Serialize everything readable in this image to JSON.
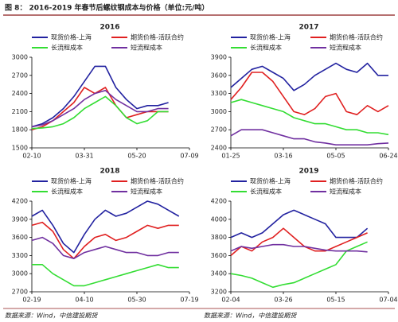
{
  "figure_title": "图 8：  2016-2019 年春节后螺纹钢成本与价格（单位:元/吨）",
  "sources": [
    "数据来源：Wind，中信建投期货",
    "数据来源：Wind，中信建投期货"
  ],
  "chart_data": [
    {
      "type": "line",
      "title": "2016",
      "categories": [
        "02-10",
        null,
        null,
        null,
        null,
        "03-31",
        null,
        null,
        null,
        null,
        "05-20",
        null,
        null,
        null,
        null,
        "07-09"
      ],
      "ylim": [
        1500,
        3000
      ],
      "yticks": [
        1500,
        1800,
        2100,
        2400,
        2700,
        3000
      ],
      "series": [
        {
          "name": "现货价格-上海",
          "color": "#2222a0",
          "values": [
            1850,
            1900,
            2000,
            2150,
            2350,
            2600,
            2850,
            2850,
            2500,
            2300,
            2150,
            2200,
            2200,
            2250,
            null,
            null
          ]
        },
        {
          "name": "期货价格-活跃合约",
          "color": "#e02020",
          "values": [
            1800,
            1850,
            1950,
            2100,
            2250,
            2500,
            2400,
            2500,
            2200,
            2000,
            2050,
            2100,
            2100,
            2100,
            null,
            null
          ]
        },
        {
          "name": "长流程成本",
          "color": "#33dd33",
          "values": [
            1820,
            1830,
            1850,
            1900,
            2000,
            2150,
            2250,
            2350,
            2200,
            2000,
            1900,
            1950,
            2100,
            2100,
            null,
            null
          ]
        },
        {
          "name": "短流程成本",
          "color": "#7030a0",
          "values": [
            1850,
            1880,
            1950,
            2050,
            2150,
            2300,
            2400,
            2450,
            2300,
            2200,
            2100,
            2100,
            2150,
            2150,
            null,
            null
          ]
        }
      ]
    },
    {
      "type": "line",
      "title": "2017",
      "categories": [
        "01-25",
        null,
        null,
        null,
        null,
        "03-16",
        null,
        null,
        null,
        null,
        "05-05",
        null,
        null,
        null,
        null,
        "06-24"
      ],
      "ylim": [
        2400,
        3900
      ],
      "yticks": [
        2400,
        2700,
        3000,
        3300,
        3600,
        3900
      ],
      "series": [
        {
          "name": "现货价格-上海",
          "color": "#2222a0",
          "values": [
            3400,
            3550,
            3700,
            3750,
            3650,
            3550,
            3350,
            3450,
            3600,
            3700,
            3800,
            3700,
            3650,
            3800,
            3600,
            3600
          ]
        },
        {
          "name": "期货价格-活跃合约",
          "color": "#e02020",
          "values": [
            3200,
            3400,
            3650,
            3650,
            3500,
            3250,
            3000,
            2950,
            3050,
            3250,
            3300,
            3000,
            2950,
            3100,
            3000,
            3100
          ]
        },
        {
          "name": "长流程成本",
          "color": "#33dd33",
          "values": [
            3150,
            3200,
            3150,
            3100,
            3050,
            3000,
            2900,
            2850,
            2800,
            2800,
            2750,
            2700,
            2700,
            2650,
            2650,
            2620
          ]
        },
        {
          "name": "短流程成本",
          "color": "#7030a0",
          "values": [
            2600,
            2700,
            2700,
            2700,
            2650,
            2600,
            2550,
            2550,
            2500,
            2480,
            2450,
            2450,
            2450,
            2450,
            2470,
            2480
          ]
        }
      ]
    },
    {
      "type": "line",
      "title": "2018",
      "categories": [
        "02-19",
        null,
        null,
        null,
        null,
        "04-10",
        null,
        null,
        null,
        null,
        "05-30",
        null,
        null,
        null,
        null,
        "07-19"
      ],
      "ylim": [
        2700,
        4200
      ],
      "yticks": [
        2700,
        3000,
        3300,
        3600,
        3900,
        4200
      ],
      "series": [
        {
          "name": "现货价格-上海",
          "color": "#2222a0",
          "values": [
            3950,
            4050,
            3800,
            3500,
            3350,
            3650,
            3900,
            4050,
            3950,
            4000,
            4100,
            4200,
            4150,
            4050,
            3950,
            null
          ]
        },
        {
          "name": "期货价格-活跃合约",
          "color": "#e02020",
          "values": [
            3800,
            3850,
            3700,
            3400,
            3250,
            3450,
            3600,
            3650,
            3550,
            3600,
            3700,
            3800,
            3750,
            3800,
            3800,
            null
          ]
        },
        {
          "name": "长流程成本",
          "color": "#33dd33",
          "values": [
            3150,
            3150,
            3000,
            2900,
            2800,
            2800,
            2850,
            2900,
            2950,
            3000,
            3050,
            3100,
            3150,
            3100,
            3100,
            null
          ]
        },
        {
          "name": "短流程成本",
          "color": "#7030a0",
          "values": [
            3550,
            3600,
            3500,
            3300,
            3250,
            3350,
            3400,
            3450,
            3400,
            3350,
            3350,
            3300,
            3300,
            3350,
            3350,
            null
          ]
        }
      ]
    },
    {
      "type": "line",
      "title": "2019",
      "categories": [
        "02-04",
        null,
        null,
        null,
        null,
        "03-26",
        null,
        null,
        null,
        null,
        "05-15",
        null,
        null,
        null,
        null,
        "07-04"
      ],
      "ylim": [
        3200,
        4200
      ],
      "yticks": [
        3200,
        3400,
        3600,
        3800,
        4000,
        4200
      ],
      "series": [
        {
          "name": "现货价格-上海",
          "color": "#2222a0",
          "values": [
            3800,
            3850,
            3800,
            3850,
            3950,
            4050,
            4100,
            4050,
            4000,
            3950,
            3800,
            3800,
            3800,
            3900,
            null,
            null
          ]
        },
        {
          "name": "期货价格-活跃合约",
          "color": "#e02020",
          "values": [
            3600,
            3700,
            3650,
            3750,
            3800,
            3900,
            3800,
            3700,
            3650,
            3650,
            3700,
            3750,
            3800,
            3850,
            null,
            null
          ]
        },
        {
          "name": "长流程成本",
          "color": "#33dd33",
          "values": [
            3400,
            3380,
            3350,
            3300,
            3250,
            3280,
            3300,
            3350,
            3400,
            3450,
            3500,
            3650,
            3700,
            3750,
            null,
            null
          ]
        },
        {
          "name": "短流程成本",
          "color": "#7030a0",
          "values": [
            3650,
            3700,
            3680,
            3700,
            3720,
            3720,
            3700,
            3700,
            3680,
            3660,
            3650,
            3650,
            3650,
            3640,
            null,
            null
          ]
        }
      ]
    }
  ]
}
